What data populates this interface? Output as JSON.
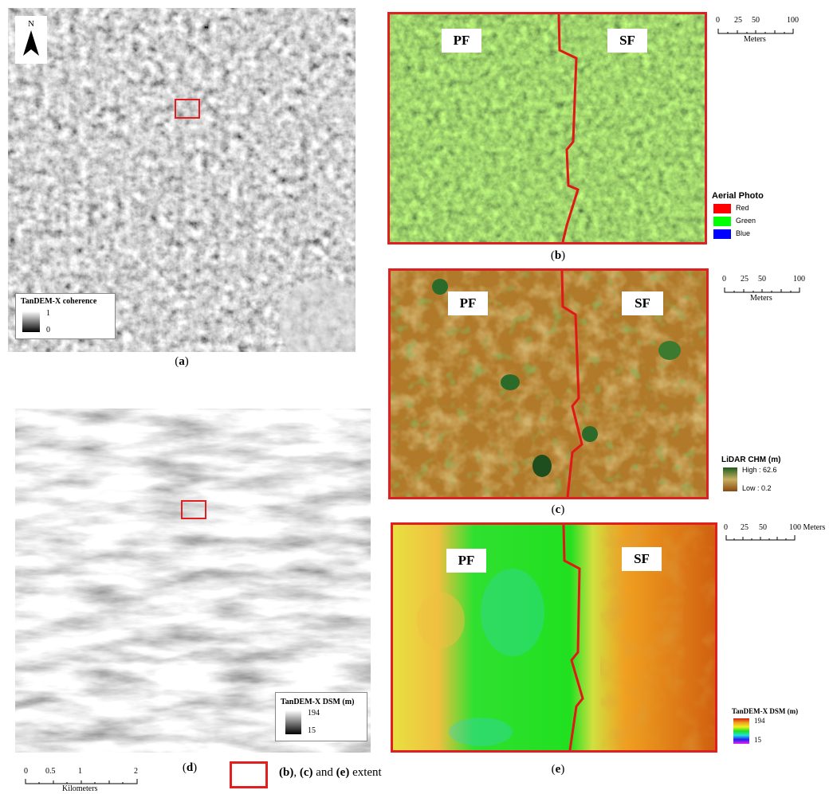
{
  "panels": {
    "a": {
      "caption_open": "(",
      "caption_letter": "a",
      "caption_close": ")",
      "north": "N",
      "legend_title": "TanDEM-X coherence",
      "legend_max": "1",
      "legend_min": "0"
    },
    "b": {
      "caption_open": "(",
      "caption_letter": "b",
      "caption_close": ")",
      "label_left": "PF",
      "label_right": "SF",
      "scale": [
        "0",
        "25",
        "50",
        "100"
      ],
      "scale_unit": "Meters",
      "legend_title": "Aerial Photo",
      "legend_items": [
        "Red",
        "Green",
        "Blue"
      ],
      "legend_colors": [
        "#ff0000",
        "#00ff00",
        "#0000ff"
      ]
    },
    "c": {
      "caption_open": "(",
      "caption_letter": "c",
      "caption_close": ")",
      "label_left": "PF",
      "label_right": "SF",
      "scale": [
        "0",
        "25",
        "50",
        "100"
      ],
      "scale_unit": "Meters",
      "legend_title": "LiDAR CHM (m)",
      "legend_high": "High : 62.6",
      "legend_low": "Low : 0.2"
    },
    "d": {
      "caption_open": "(",
      "caption_letter": "d",
      "caption_close": ")",
      "legend_title": "TanDEM-X DSM (m)",
      "legend_max": "194",
      "legend_min": "15",
      "scale": [
        "0",
        "0.5",
        "1",
        "2"
      ],
      "scale_unit": "Kilometers"
    },
    "e": {
      "caption_open": "(",
      "caption_letter": "e",
      "caption_close": ")",
      "label_left": "PF",
      "label_right": "SF",
      "scale": [
        "0",
        "25",
        "50",
        "100 Meters"
      ],
      "legend_title": "TanDEM-X DSM (m)",
      "legend_max": "194",
      "legend_min": "15"
    }
  },
  "extent_legend": {
    "b": "(b)",
    "sep1": ", ",
    "c": "(c)",
    "sep2": " and ",
    "e": "(e)",
    "suffix": " extent"
  },
  "colors": {
    "frame": "#e02020",
    "boundary": "#e01818"
  }
}
